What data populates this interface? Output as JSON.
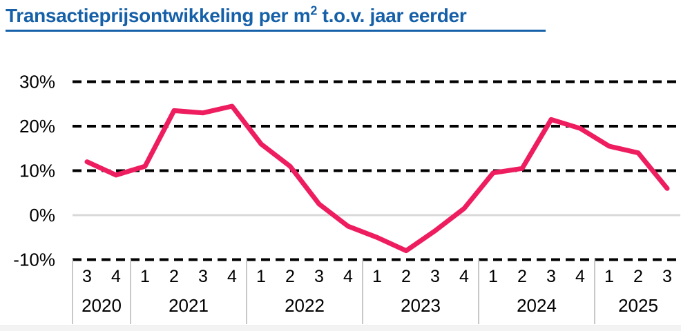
{
  "header": {
    "title_prefix": "Transactieprijsontwikkeling per m",
    "title_sup": "2",
    "title_suffix": " t.o.v. jaar eerder"
  },
  "colors": {
    "title": "#1560A8",
    "line": "#EE1D60",
    "grid": "#000000",
    "zero_line": "#D9D9D9",
    "separator": "#C8C8C8",
    "label": "#000000",
    "footer_strip": "#F3F3F3"
  },
  "chart_data": {
    "type": "line",
    "title": "Transactieprijsontwikkeling per m2 t.o.v. jaar eerder",
    "unit": "%",
    "ylim": [
      -10,
      30
    ],
    "grid": "horizontal dashed, solid line at 0%",
    "legend_position": "none",
    "yticks": [
      {
        "label": "30%",
        "value": 30
      },
      {
        "label": "20%",
        "value": 20
      },
      {
        "label": "10%",
        "value": 10
      },
      {
        "label": "0%",
        "value": 0
      },
      {
        "label": "-10%",
        "value": -10
      }
    ],
    "groups": [
      {
        "year": "2020",
        "quarters": [
          "3",
          "4"
        ]
      },
      {
        "year": "2021",
        "quarters": [
          "1",
          "2",
          "3",
          "4"
        ]
      },
      {
        "year": "2022",
        "quarters": [
          "1",
          "2",
          "3",
          "4"
        ]
      },
      {
        "year": "2023",
        "quarters": [
          "1",
          "2",
          "3",
          "4"
        ]
      },
      {
        "year": "2024",
        "quarters": [
          "1",
          "2",
          "3",
          "4"
        ]
      },
      {
        "year": "2025",
        "quarters": [
          "1",
          "2",
          "3"
        ]
      }
    ],
    "series": [
      {
        "name": "Transactieprijsontwikkeling per m2 t.o.v. jaar eerder",
        "color": "#EE1D60",
        "values": [
          12,
          9,
          11,
          23.5,
          23,
          24.5,
          16,
          11,
          2.5,
          -2.5,
          -5,
          -8,
          -3.5,
          1.5,
          9.5,
          10.5,
          21.5,
          19.5,
          15.5,
          14,
          6
        ]
      }
    ]
  }
}
